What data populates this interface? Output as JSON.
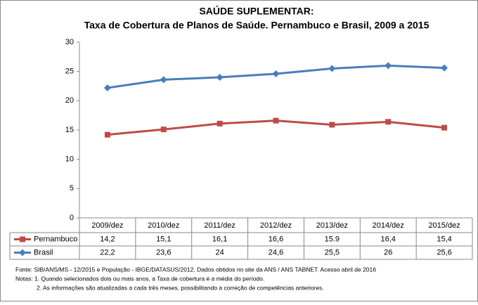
{
  "chart_data": {
    "type": "line",
    "title": [
      "SAÚDE SUPLEMENTAR:",
      "Taxa de Cobertura de Planos de Saúde. Pernambuco  e Brasil, 2009 a 2015"
    ],
    "categories": [
      "2009/dez",
      "2010/dez",
      "2011/dez",
      "2012/dez",
      "2013/dez",
      "2014/dez",
      "2015/dez"
    ],
    "series": [
      {
        "name": "Pernambuco",
        "color": "#be4b48",
        "marker": "square",
        "values": [
          14.2,
          15.1,
          16.1,
          16.6,
          15.9,
          16.4,
          15.4
        ],
        "value_labels": [
          "14,2",
          "15,1",
          "16,1",
          "16,6",
          "15.9",
          "16,4",
          "15,4"
        ]
      },
      {
        "name": "Brasil",
        "color": "#4a7ebb",
        "marker": "diamond",
        "values": [
          22.2,
          23.6,
          24,
          24.6,
          25.5,
          26,
          25.6
        ],
        "value_labels": [
          "22,2",
          "23,6",
          "24",
          "24,6",
          "25,5",
          "26",
          "25,6"
        ]
      }
    ],
    "ylim": [
      0,
      30
    ],
    "yticks": [
      0,
      5,
      10,
      15,
      20,
      25,
      30
    ],
    "grid": false,
    "notes": [
      "Fonte: SIB/ANS/MS - 12/2015 e População - IBGE/DATASUS/2012. Dados obtidos no site da ANS / ANS TABNET. Acesso abril de 2016",
      "Notas: 1. Quando selecionados dois ou mais anos, a Taxa de cobertura é a média do período.",
      "2. As informações são atualizadas a cada três meses, possibilitando a correção de competências anteriores."
    ]
  }
}
